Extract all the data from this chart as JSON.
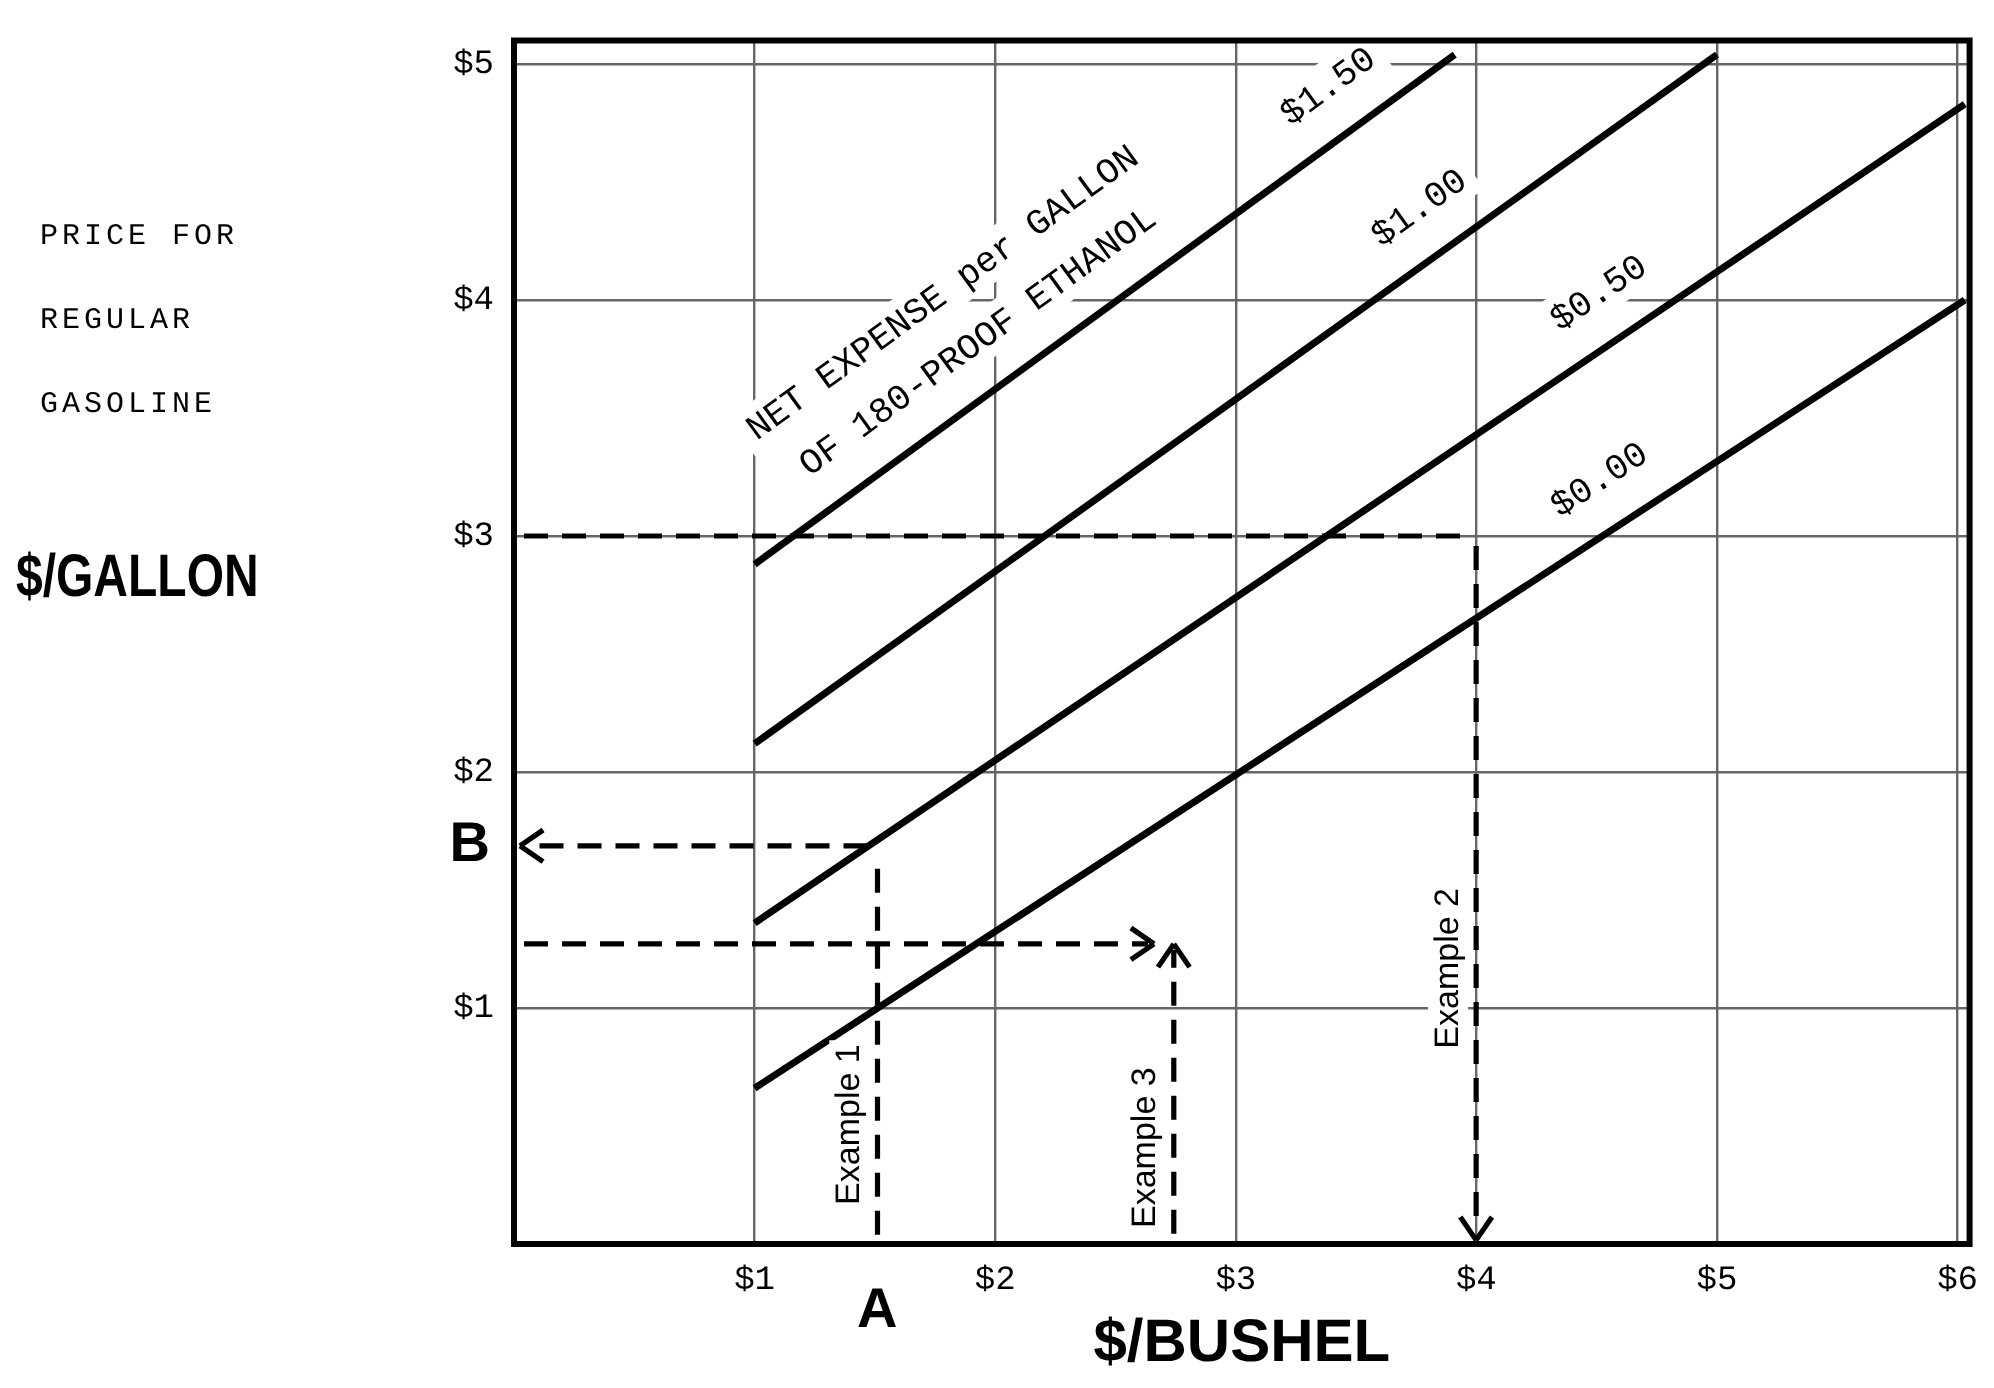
{
  "chart_data": {
    "type": "line",
    "xlabel": "$/BUSHEL",
    "ylabel": "$/GALLON",
    "legend_title": "NET EXPENSE per GALLON\nOF 180-PROOF ETHANOL",
    "xlim": [
      0,
      6.05
    ],
    "ylim": [
      0,
      5.1
    ],
    "xticks": [
      {
        "value": 1,
        "label": "$1"
      },
      {
        "value": 2,
        "label": "$2"
      },
      {
        "value": 3,
        "label": "$3"
      },
      {
        "value": 4,
        "label": "$4"
      },
      {
        "value": 5,
        "label": "$5"
      },
      {
        "value": 6,
        "label": "$6"
      }
    ],
    "yticks": [
      {
        "value": 1,
        "label": "$1"
      },
      {
        "value": 2,
        "label": "$2"
      },
      {
        "value": 3,
        "label": "$3"
      },
      {
        "value": 4,
        "label": "$4"
      },
      {
        "value": 5,
        "label": "$5"
      }
    ],
    "grid": true,
    "legend": false,
    "marker": "none",
    "series": [
      {
        "name": "$1.50",
        "color": "#000000",
        "line_style": "solid",
        "x": [
          1,
          3.91
        ],
        "values": [
          2.88,
          5.04
        ]
      },
      {
        "name": "$1.00",
        "color": "#000000",
        "line_style": "solid",
        "x": [
          1,
          5.0
        ],
        "values": [
          2.12,
          5.04
        ]
      },
      {
        "name": "$0.50",
        "color": "#000000",
        "line_style": "solid",
        "x": [
          1,
          6.03
        ],
        "values": [
          1.36,
          4.83
        ]
      },
      {
        "name": "$0.00",
        "color": "#000000",
        "line_style": "solid",
        "x": [
          1,
          6.03
        ],
        "values": [
          0.66,
          4.0
        ]
      }
    ],
    "annotations": [
      "PRICE FOR REGULAR GASOLINE",
      "A",
      "B",
      "Example 1",
      "Example 2",
      "Example 3"
    ]
  }
}
